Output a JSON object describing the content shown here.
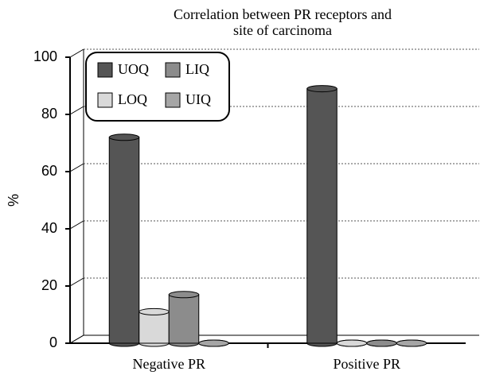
{
  "chart_data": {
    "type": "bar",
    "title": [
      "Correlation between PR receptors and",
      "site of carcinoma"
    ],
    "ylabel": "%",
    "categories": [
      "Negative PR",
      "Positive PR"
    ],
    "series": [
      {
        "name": "UOQ",
        "color": "#555555",
        "values": [
          72,
          89
        ]
      },
      {
        "name": "LOQ",
        "color": "#d9d9d9",
        "values": [
          11,
          0
        ]
      },
      {
        "name": "LIQ",
        "color": "#8c8c8c",
        "values": [
          17,
          0
        ]
      },
      {
        "name": "UIQ",
        "color": "#a6a6a6",
        "values": [
          0,
          0
        ]
      }
    ],
    "ylim": [
      0,
      100
    ],
    "yticks": [
      0,
      20,
      40,
      60,
      80,
      100
    ],
    "grid": true,
    "legend": "upper left"
  }
}
